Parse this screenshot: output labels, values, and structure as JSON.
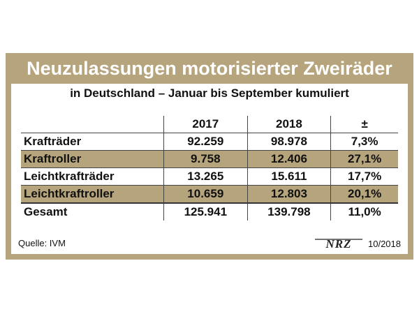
{
  "header": {
    "title": "Neuzulassungen motorisierter Zweiräder",
    "subtitle": "in Deutschland – Januar bis September kumuliert"
  },
  "table": {
    "columns": [
      "",
      "2017",
      "2018",
      "±"
    ],
    "rows": [
      {
        "label": "Krafträder",
        "y2017": "92.259",
        "y2018": "98.978",
        "change": "7,3%"
      },
      {
        "label": "Kraftroller",
        "y2017": "9.758",
        "y2018": "12.406",
        "change": "27,1%"
      },
      {
        "label": "Leichtkrafträder",
        "y2017": "13.265",
        "y2018": "15.611",
        "change": "17,7%"
      },
      {
        "label": "Leichtkraftroller",
        "y2017": "10.659",
        "y2018": "12.803",
        "change": "20,1%"
      },
      {
        "label": "Gesamt",
        "y2017": "125.941",
        "y2018": "139.798",
        "change": "11,0%"
      }
    ]
  },
  "footer": {
    "source": "Quelle: IVM",
    "logo_text": "NRZ",
    "date": "10/2018"
  },
  "colors": {
    "frame": "#b5a47c",
    "positive": "#3c8a2a"
  }
}
